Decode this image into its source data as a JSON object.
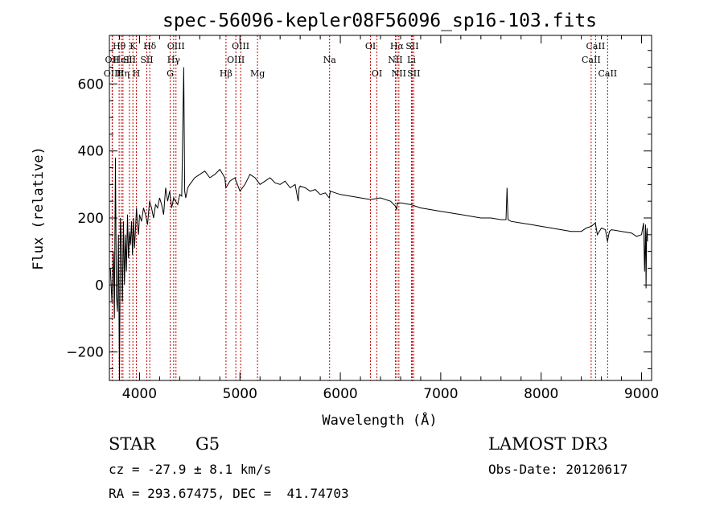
{
  "chart_data": {
    "type": "line",
    "title": "spec-56096-kepler08F56096_sp16-103.fits",
    "xlabel": "Wavelength (Å)",
    "ylabel": "Flux (relative)",
    "xlim": [
      3700,
      9100
    ],
    "ylim": [
      -285,
      745
    ],
    "xticks": [
      4000,
      5000,
      6000,
      7000,
      8000,
      9000
    ],
    "yticks": [
      -200,
      0,
      200,
      400,
      600
    ],
    "series": [
      {
        "name": "flux",
        "x": [
          3710,
          3725,
          3740,
          3750,
          3760,
          3770,
          3780,
          3790,
          3800,
          3810,
          3820,
          3830,
          3840,
          3850,
          3860,
          3870,
          3880,
          3890,
          3900,
          3910,
          3920,
          3930,
          3940,
          3950,
          3960,
          3970,
          3980,
          3990,
          4000,
          4020,
          4040,
          4060,
          4080,
          4100,
          4120,
          4140,
          4160,
          4180,
          4200,
          4220,
          4240,
          4260,
          4280,
          4300,
          4320,
          4340,
          4360,
          4380,
          4400,
          4420,
          4440,
          4450,
          4460,
          4480,
          4500,
          4550,
          4600,
          4650,
          4700,
          4750,
          4800,
          4850,
          4860,
          4900,
          4950,
          5000,
          5050,
          5100,
          5150,
          5200,
          5250,
          5300,
          5350,
          5400,
          5450,
          5500,
          5550,
          5580,
          5590,
          5600,
          5650,
          5700,
          5750,
          5800,
          5850,
          5890,
          5900,
          5950,
          6000,
          6100,
          6200,
          6300,
          6400,
          6500,
          6550,
          6560,
          6570,
          6600,
          6700,
          6800,
          6900,
          7000,
          7100,
          7200,
          7300,
          7400,
          7500,
          7600,
          7650,
          7660,
          7670,
          7700,
          7800,
          7900,
          8000,
          8100,
          8200,
          8300,
          8400,
          8450,
          8500,
          8520,
          8540,
          8560,
          8600,
          8640,
          8660,
          8680,
          8700,
          8800,
          8900,
          8950,
          9000,
          9020,
          9030,
          9040,
          9045,
          9050,
          9055,
          9060
        ],
        "y": [
          50,
          -50,
          100,
          -100,
          380,
          -30,
          -80,
          150,
          -280,
          200,
          120,
          -50,
          190,
          0,
          150,
          40,
          210,
          80,
          160,
          120,
          190,
          90,
          200,
          110,
          170,
          230,
          180,
          150,
          210,
          190,
          230,
          210,
          180,
          250,
          230,
          200,
          240,
          230,
          260,
          240,
          210,
          290,
          250,
          280,
          230,
          260,
          250,
          240,
          270,
          265,
          650,
          280,
          260,
          290,
          300,
          320,
          330,
          340,
          320,
          330,
          345,
          320,
          290,
          310,
          320,
          280,
          300,
          330,
          320,
          300,
          310,
          320,
          305,
          300,
          310,
          290,
          300,
          250,
          290,
          295,
          290,
          280,
          285,
          270,
          275,
          260,
          280,
          275,
          270,
          265,
          260,
          255,
          260,
          250,
          235,
          225,
          245,
          245,
          240,
          230,
          225,
          220,
          215,
          210,
          205,
          200,
          200,
          195,
          195,
          290,
          195,
          190,
          185,
          180,
          175,
          170,
          165,
          160,
          160,
          170,
          175,
          180,
          185,
          150,
          170,
          165,
          130,
          160,
          165,
          160,
          155,
          145,
          150,
          185,
          40,
          180,
          -10,
          150,
          170,
          130
        ]
      }
    ],
    "emission_lines": [
      {
        "label": "Hθ",
        "x": 3797,
        "row": 0
      },
      {
        "label": "OII",
        "x": 3727,
        "row": 1
      },
      {
        "label": "OIII",
        "x": 3730,
        "row": 2
      },
      {
        "label": "HeI",
        "x": 3819,
        "row": 1
      },
      {
        "label": "Hη",
        "x": 3835,
        "row": 2
      },
      {
        "label": "K",
        "x": 3934,
        "row": 0
      },
      {
        "label": "SII",
        "x": 3900,
        "row": 1
      },
      {
        "label": "H",
        "x": 3968,
        "row": 2
      },
      {
        "label": "Hδ",
        "x": 4102,
        "row": 0
      },
      {
        "label": "SII",
        "x": 4072,
        "row": 1
      },
      {
        "label": "OIII",
        "x": 4363,
        "row": 0
      },
      {
        "label": "Hγ",
        "x": 4340,
        "row": 1
      },
      {
        "label": "G",
        "x": 4305,
        "row": 2
      },
      {
        "label": "OIII",
        "x": 5007,
        "row": 0
      },
      {
        "label": "OIII",
        "x": 4959,
        "row": 1
      },
      {
        "label": "Hβ",
        "x": 4861,
        "row": 2
      },
      {
        "label": "Mg",
        "x": 5175,
        "row": 2
      },
      {
        "label": "Na",
        "x": 5893,
        "row": 1
      },
      {
        "label": "OI",
        "x": 6300,
        "row": 0
      },
      {
        "label": "OI",
        "x": 6364,
        "row": 2
      },
      {
        "label": "Hα",
        "x": 6563,
        "row": 0
      },
      {
        "label": "SII",
        "x": 6716,
        "row": 0
      },
      {
        "label": "NII",
        "x": 6548,
        "row": 1
      },
      {
        "label": "Li",
        "x": 6708,
        "row": 1
      },
      {
        "label": "NII",
        "x": 6583,
        "row": 2
      },
      {
        "label": "SII",
        "x": 6731,
        "row": 2
      },
      {
        "label": "CaII",
        "x": 8542,
        "row": 0
      },
      {
        "label": "CaII",
        "x": 8498,
        "row": 1
      },
      {
        "label": "CaII",
        "x": 8662,
        "row": 2
      }
    ]
  },
  "info": {
    "object_class": "STAR",
    "subclass": "G5",
    "survey": "LAMOST DR3",
    "redshift": "cz = -27.9 ± 8.1 km/s",
    "obs_date": "Obs-Date: 20120617",
    "coords": "RA = 293.67475, DEC =  41.74703"
  }
}
